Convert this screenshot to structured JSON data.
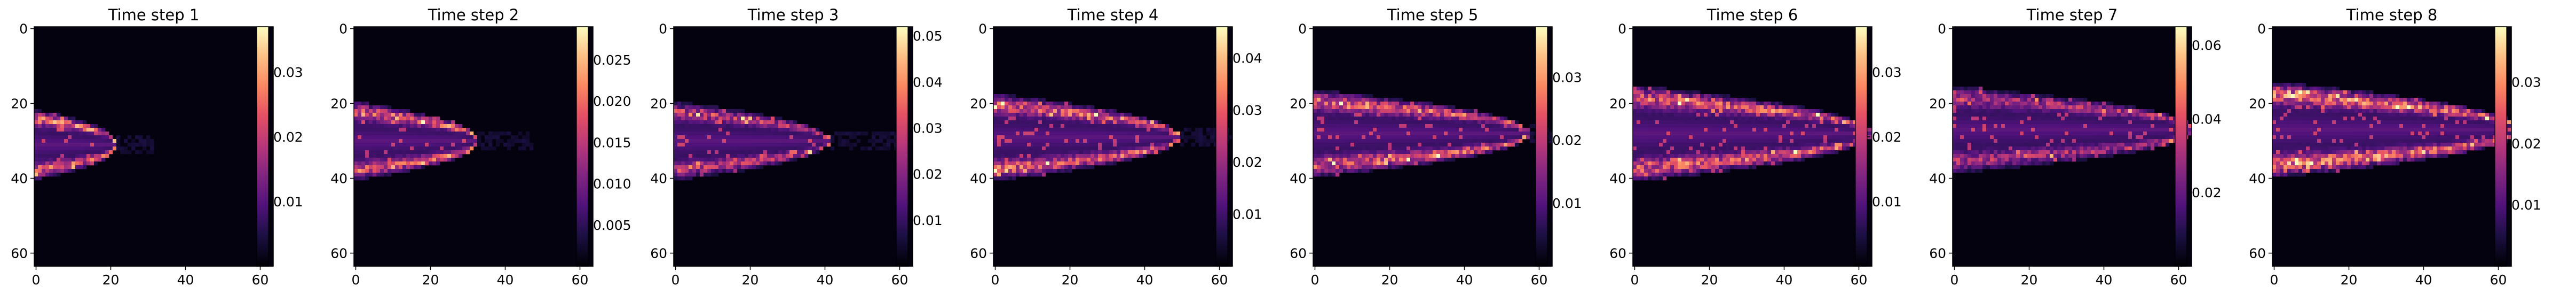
{
  "chart_data": [
    {
      "type": "heatmap",
      "title": "Time step 1",
      "xticks": [
        "0",
        "20",
        "40",
        "60"
      ],
      "yticks": [
        "0",
        "20",
        "40",
        "60"
      ],
      "colorbar_ticks": [
        "0.01",
        "0.02",
        "0.03"
      ],
      "colorbar_range": [
        0,
        0.037
      ],
      "colormap": "magma",
      "grid": 64,
      "shape": {
        "center_row": 31,
        "tip_col": 21,
        "thickness": 7,
        "intensity": 0.8
      }
    },
    {
      "type": "heatmap",
      "title": "Time step 2",
      "xticks": [
        "0",
        "20",
        "40",
        "60"
      ],
      "yticks": [
        "0",
        "20",
        "40",
        "60"
      ],
      "colorbar_ticks": [
        "0.005",
        "0.010",
        "0.015",
        "0.020",
        "0.025"
      ],
      "colorbar_range": [
        0,
        0.029
      ],
      "colormap": "magma",
      "grid": 64,
      "shape": {
        "center_row": 30,
        "tip_col": 32,
        "thickness": 8,
        "intensity": 0.8
      }
    },
    {
      "type": "heatmap",
      "title": "Time step 3",
      "xticks": [
        "0",
        "20",
        "40",
        "60"
      ],
      "yticks": [
        "0",
        "20",
        "40",
        "60"
      ],
      "colorbar_ticks": [
        "0.01",
        "0.02",
        "0.03",
        "0.04",
        "0.05"
      ],
      "colorbar_range": [
        0,
        0.052
      ],
      "colormap": "magma",
      "grid": 64,
      "shape": {
        "center_row": 30,
        "tip_col": 40,
        "thickness": 8,
        "intensity": 0.6
      }
    },
    {
      "type": "heatmap",
      "title": "Time step 4",
      "xticks": [
        "0",
        "20",
        "40",
        "60"
      ],
      "yticks": [
        "0",
        "20",
        "40",
        "60"
      ],
      "colorbar_ticks": [
        "0.01",
        "0.02",
        "0.03",
        "0.04"
      ],
      "colorbar_range": [
        0,
        0.046
      ],
      "colormap": "magma",
      "grid": 64,
      "shape": {
        "center_row": 29,
        "tip_col": 48,
        "thickness": 9,
        "intensity": 0.75
      }
    },
    {
      "type": "heatmap",
      "title": "Time step 5",
      "xticks": [
        "0",
        "20",
        "40",
        "60"
      ],
      "yticks": [
        "0",
        "20",
        "40",
        "60"
      ],
      "colorbar_ticks": [
        "0.01",
        "0.02",
        "0.03"
      ],
      "colorbar_range": [
        0,
        0.038
      ],
      "colormap": "magma",
      "grid": 64,
      "shape": {
        "center_row": 28,
        "tip_col": 56,
        "thickness": 9,
        "intensity": 0.75
      }
    },
    {
      "type": "heatmap",
      "title": "Time step 6",
      "xticks": [
        "0",
        "20",
        "40",
        "60"
      ],
      "yticks": [
        "0",
        "20",
        "40",
        "60"
      ],
      "colorbar_ticks": [
        "0.01",
        "0.02",
        "0.03"
      ],
      "colorbar_range": [
        0,
        0.037
      ],
      "colormap": "magma",
      "grid": 64,
      "shape": {
        "center_row": 28,
        "tip_col": 62,
        "thickness": 10,
        "intensity": 0.75
      }
    },
    {
      "type": "heatmap",
      "title": "Time step 7",
      "xticks": [
        "0",
        "20",
        "40",
        "60"
      ],
      "yticks": [
        "0",
        "20",
        "40",
        "60"
      ],
      "colorbar_ticks": [
        "0.02",
        "0.04",
        "0.06"
      ],
      "colorbar_range": [
        0,
        0.065
      ],
      "colormap": "magma",
      "grid": 64,
      "shape": {
        "center_row": 27,
        "tip_col": 63,
        "thickness": 9,
        "intensity": 0.55
      }
    },
    {
      "type": "heatmap",
      "title": "Time step 8",
      "xticks": [
        "0",
        "20",
        "40",
        "60"
      ],
      "yticks": [
        "0",
        "20",
        "40",
        "60"
      ],
      "colorbar_ticks": [
        "0.01",
        "0.02",
        "0.03"
      ],
      "colorbar_range": [
        0,
        0.039
      ],
      "colormap": "magma",
      "grid": 64,
      "shape": {
        "center_row": 27,
        "tip_col": 64,
        "thickness": 10,
        "intensity": 0.85
      }
    }
  ]
}
